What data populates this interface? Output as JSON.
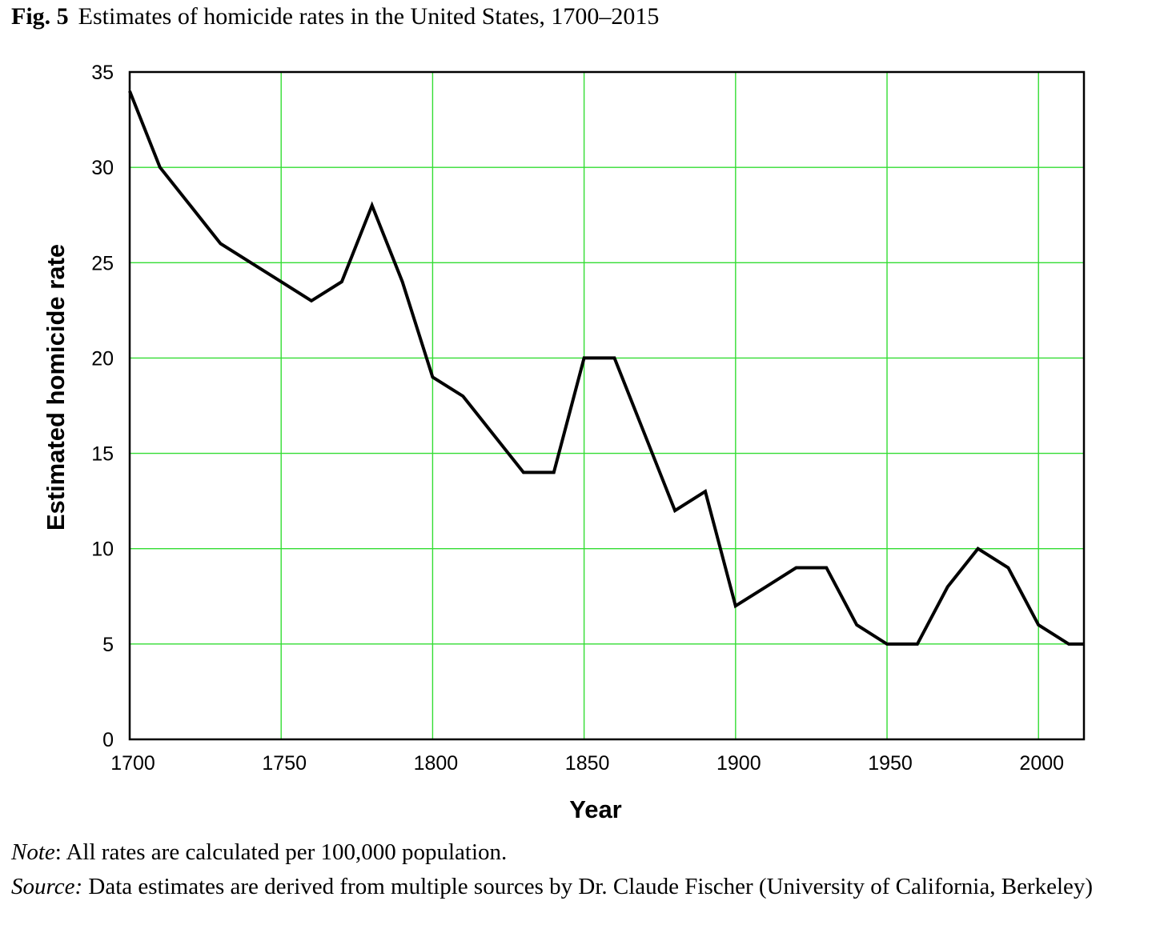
{
  "figure": {
    "number": "Fig. 5",
    "caption": "Estimates of homicide rates in the United States, 1700–2015"
  },
  "notes": {
    "note_label": "Note",
    "note_text": ": All rates are calculated per 100,000 population.",
    "source_label": "Source:",
    "source_text": " Data estimates are derived from multiple sources by Dr. Claude Fischer (University of California, Berkeley)"
  },
  "colors": {
    "grid": "#33dd33",
    "line": "#000000",
    "frame": "#000000"
  },
  "chart_data": {
    "type": "line",
    "title": "Estimates of homicide rates in the United States, 1700–2015",
    "xlabel": "Year",
    "ylabel": "Estimated homicide rate",
    "xlim": [
      1700,
      2015
    ],
    "ylim": [
      0,
      35
    ],
    "xticks": [
      1700,
      1750,
      1800,
      1850,
      1900,
      1950,
      2000
    ],
    "yticks": [
      0,
      5,
      10,
      15,
      20,
      25,
      30,
      35
    ],
    "grid": true,
    "legend": "none",
    "series": [
      {
        "name": "Estimated homicide rate",
        "x": [
          1700,
          1710,
          1720,
          1730,
          1740,
          1750,
          1760,
          1770,
          1780,
          1790,
          1800,
          1810,
          1820,
          1830,
          1840,
          1850,
          1860,
          1870,
          1880,
          1890,
          1900,
          1910,
          1920,
          1930,
          1940,
          1950,
          1960,
          1970,
          1980,
          1990,
          2000,
          2010,
          2015
        ],
        "y": [
          34,
          30,
          28,
          26,
          25,
          24,
          23,
          24,
          28,
          24,
          19,
          18,
          16,
          14,
          14,
          20,
          20,
          16,
          12,
          13,
          7,
          8,
          9,
          9,
          6,
          5,
          5,
          8,
          10,
          9,
          6,
          5,
          5
        ]
      }
    ]
  }
}
